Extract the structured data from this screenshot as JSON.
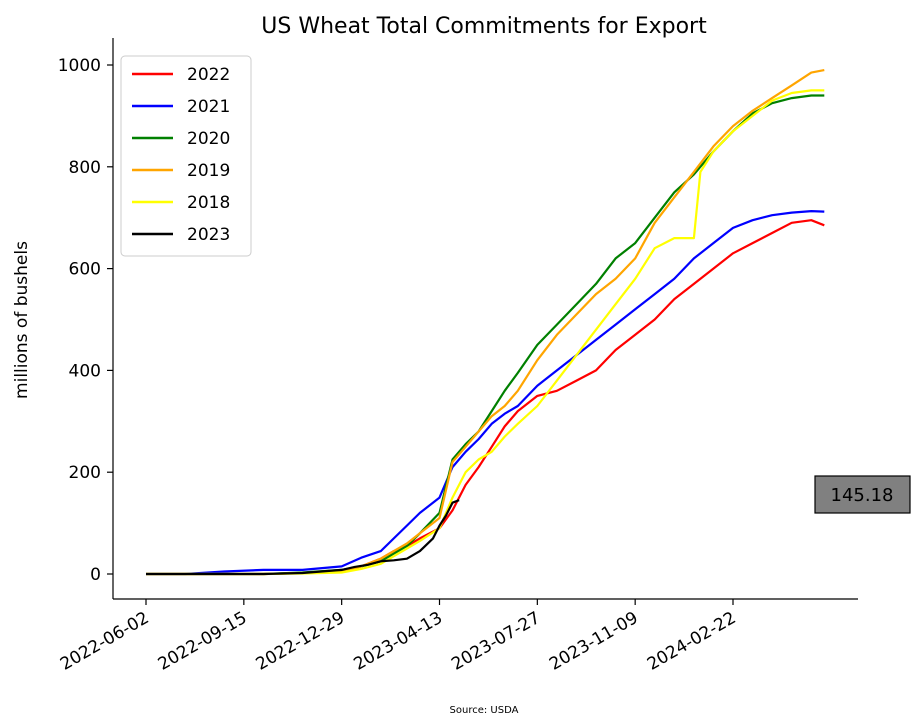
{
  "chart_data": {
    "type": "line",
    "title": "US Wheat Total Commitments for Export",
    "xlabel": "",
    "ylabel": "millions of bushels",
    "source": "Source: USDA",
    "x_tick_labels": [
      "2022-06-02",
      "2022-09-15",
      "2022-12-29",
      "2023-04-13",
      "2023-07-27",
      "2023-11-09",
      "2024-02-22"
    ],
    "ylim": [
      -50,
      1040
    ],
    "yticks": [
      0,
      200,
      400,
      600,
      800,
      1000
    ],
    "grid": false,
    "legend_position": "top-left",
    "callout": "145.18",
    "callout_color": "#808080",
    "x_start": "2022-06-02",
    "x_end": "2024-05-30",
    "series": [
      {
        "name": "2022",
        "color": "#ff0000",
        "x": [
          "2022-06-02",
          "2022-07-14",
          "2022-08-25",
          "2022-10-06",
          "2022-11-17",
          "2022-12-29",
          "2023-01-19",
          "2023-02-09",
          "2023-02-23",
          "2023-03-09",
          "2023-03-23",
          "2023-04-13",
          "2023-04-27",
          "2023-05-11",
          "2023-05-25",
          "2023-06-08",
          "2023-06-22",
          "2023-07-06",
          "2023-07-27",
          "2023-08-17",
          "2023-09-07",
          "2023-09-28",
          "2023-10-19",
          "2023-11-09",
          "2023-11-30",
          "2023-12-21",
          "2024-01-11",
          "2024-02-01",
          "2024-02-22",
          "2024-03-14",
          "2024-04-04",
          "2024-04-25",
          "2024-05-16",
          "2024-05-30"
        ],
        "values": [
          0,
          0,
          0,
          0,
          2,
          5,
          15,
          30,
          45,
          55,
          70,
          90,
          125,
          175,
          210,
          250,
          290,
          320,
          350,
          360,
          380,
          400,
          440,
          470,
          500,
          540,
          570,
          600,
          630,
          650,
          670,
          690,
          695,
          685
        ]
      },
      {
        "name": "2021",
        "color": "#0000ff",
        "x": [
          "2022-06-02",
          "2022-07-14",
          "2022-08-25",
          "2022-10-06",
          "2022-11-17",
          "2022-12-29",
          "2023-01-19",
          "2023-02-09",
          "2023-02-23",
          "2023-03-09",
          "2023-03-23",
          "2023-04-13",
          "2023-04-27",
          "2023-05-11",
          "2023-05-25",
          "2023-06-08",
          "2023-06-22",
          "2023-07-06",
          "2023-07-27",
          "2023-08-17",
          "2023-09-07",
          "2023-09-28",
          "2023-10-19",
          "2023-11-09",
          "2023-11-30",
          "2023-12-21",
          "2024-01-11",
          "2024-02-01",
          "2024-02-22",
          "2024-03-14",
          "2024-04-04",
          "2024-04-25",
          "2024-05-16",
          "2024-05-30"
        ],
        "values": [
          0,
          0,
          5,
          8,
          8,
          15,
          32,
          45,
          70,
          95,
          120,
          150,
          210,
          240,
          265,
          295,
          315,
          330,
          370,
          400,
          430,
          460,
          490,
          520,
          550,
          580,
          620,
          650,
          680,
          695,
          705,
          710,
          713,
          712
        ]
      },
      {
        "name": "2020",
        "color": "#008000",
        "x": [
          "2022-06-02",
          "2022-07-14",
          "2022-08-25",
          "2022-10-06",
          "2022-11-17",
          "2022-12-29",
          "2023-01-19",
          "2023-02-09",
          "2023-02-23",
          "2023-03-09",
          "2023-03-23",
          "2023-04-13",
          "2023-04-27",
          "2023-05-11",
          "2023-05-25",
          "2023-06-08",
          "2023-06-22",
          "2023-07-06",
          "2023-07-27",
          "2023-08-17",
          "2023-09-07",
          "2023-09-28",
          "2023-10-19",
          "2023-11-09",
          "2023-11-30",
          "2023-12-21",
          "2024-01-11",
          "2024-02-01",
          "2024-02-22",
          "2024-03-14",
          "2024-04-04",
          "2024-04-25",
          "2024-05-16",
          "2024-05-30"
        ],
        "values": [
          0,
          0,
          0,
          0,
          3,
          8,
          15,
          25,
          40,
          55,
          80,
          120,
          225,
          255,
          280,
          320,
          360,
          395,
          450,
          490,
          530,
          570,
          620,
          650,
          700,
          750,
          785,
          830,
          870,
          905,
          925,
          935,
          940,
          940
        ]
      },
      {
        "name": "2019",
        "color": "#ffa500",
        "x": [
          "2022-06-02",
          "2022-07-14",
          "2022-08-25",
          "2022-10-06",
          "2022-11-17",
          "2022-12-29",
          "2023-01-19",
          "2023-02-09",
          "2023-02-23",
          "2023-03-09",
          "2023-03-23",
          "2023-04-13",
          "2023-04-27",
          "2023-05-11",
          "2023-05-25",
          "2023-06-08",
          "2023-06-22",
          "2023-07-06",
          "2023-07-27",
          "2023-08-17",
          "2023-09-07",
          "2023-09-28",
          "2023-10-19",
          "2023-11-09",
          "2023-11-30",
          "2023-12-21",
          "2024-01-11",
          "2024-02-01",
          "2024-02-22",
          "2024-03-14",
          "2024-04-04",
          "2024-04-25",
          "2024-05-16",
          "2024-05-30"
        ],
        "values": [
          0,
          0,
          0,
          0,
          2,
          5,
          15,
          30,
          45,
          60,
          80,
          110,
          220,
          250,
          280,
          310,
          330,
          360,
          420,
          470,
          510,
          550,
          580,
          620,
          690,
          740,
          790,
          840,
          880,
          910,
          935,
          960,
          985,
          990
        ]
      },
      {
        "name": "2018",
        "color": "#ffff00",
        "x": [
          "2022-06-02",
          "2022-07-14",
          "2022-08-25",
          "2022-10-06",
          "2022-11-17",
          "2022-12-29",
          "2023-01-19",
          "2023-02-09",
          "2023-02-23",
          "2023-03-09",
          "2023-03-23",
          "2023-04-13",
          "2023-04-27",
          "2023-05-11",
          "2023-05-25",
          "2023-06-08",
          "2023-06-22",
          "2023-07-06",
          "2023-07-27",
          "2023-08-17",
          "2023-09-07",
          "2023-09-28",
          "2023-10-19",
          "2023-11-09",
          "2023-11-30",
          "2023-12-21",
          "2024-01-11",
          "2024-01-18",
          "2024-02-01",
          "2024-02-22",
          "2024-03-14",
          "2024-04-04",
          "2024-04-25",
          "2024-05-16",
          "2024-05-30"
        ],
        "values": [
          0,
          0,
          0,
          0,
          1,
          3,
          10,
          20,
          35,
          50,
          65,
          90,
          150,
          200,
          225,
          240,
          270,
          295,
          330,
          380,
          430,
          480,
          530,
          580,
          640,
          660,
          660,
          790,
          830,
          870,
          900,
          930,
          945,
          950,
          950
        ]
      },
      {
        "name": "2023",
        "color": "#000000",
        "x": [
          "2022-06-02",
          "2022-07-14",
          "2022-08-25",
          "2022-10-06",
          "2022-11-17",
          "2022-12-29",
          "2023-01-12",
          "2023-01-26",
          "2023-02-09",
          "2023-02-23",
          "2023-03-09",
          "2023-03-23",
          "2023-04-06",
          "2023-04-13",
          "2023-04-20",
          "2023-04-27",
          "2023-05-04"
        ],
        "values": [
          0,
          0,
          0,
          0,
          2,
          8,
          14,
          18,
          25,
          27,
          30,
          45,
          70,
          95,
          115,
          140,
          145.18
        ]
      }
    ]
  }
}
